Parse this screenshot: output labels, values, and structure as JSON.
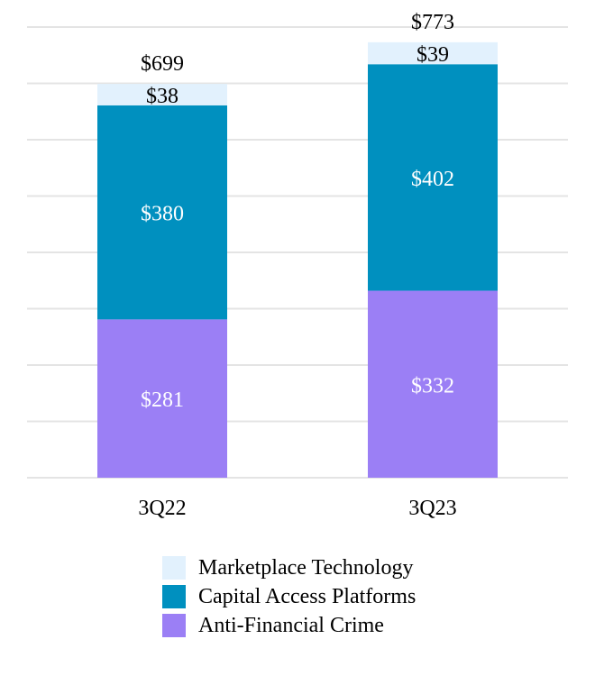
{
  "chart_data": {
    "type": "bar",
    "stacked": true,
    "categories": [
      "3Q22",
      "3Q23"
    ],
    "series": [
      {
        "name": "Anti-Financial Crime",
        "values": [
          281,
          332
        ],
        "labels": [
          "$281",
          "$332"
        ],
        "color": "#9b7ff5"
      },
      {
        "name": "Capital Access Platforms",
        "values": [
          380,
          402
        ],
        "labels": [
          "$380",
          "$402"
        ],
        "color": "#0090bf"
      },
      {
        "name": "Marketplace Technology",
        "values": [
          38,
          39
        ],
        "labels": [
          "$38",
          "$39"
        ],
        "color": "#e2f1fd"
      }
    ],
    "totals": [
      699,
      773
    ],
    "total_labels": [
      "$699",
      "$773"
    ],
    "ylim": [
      0,
      800
    ],
    "grid": true,
    "legend_position": "bottom",
    "title": "",
    "xlabel": "",
    "ylabel": ""
  },
  "legend": {
    "items": [
      {
        "label": "Marketplace Technology",
        "color": "#e2f1fd"
      },
      {
        "label": "Capital Access Platforms",
        "color": "#0090bf"
      },
      {
        "label": "Anti-Financial Crime",
        "color": "#9b7ff5"
      }
    ]
  }
}
